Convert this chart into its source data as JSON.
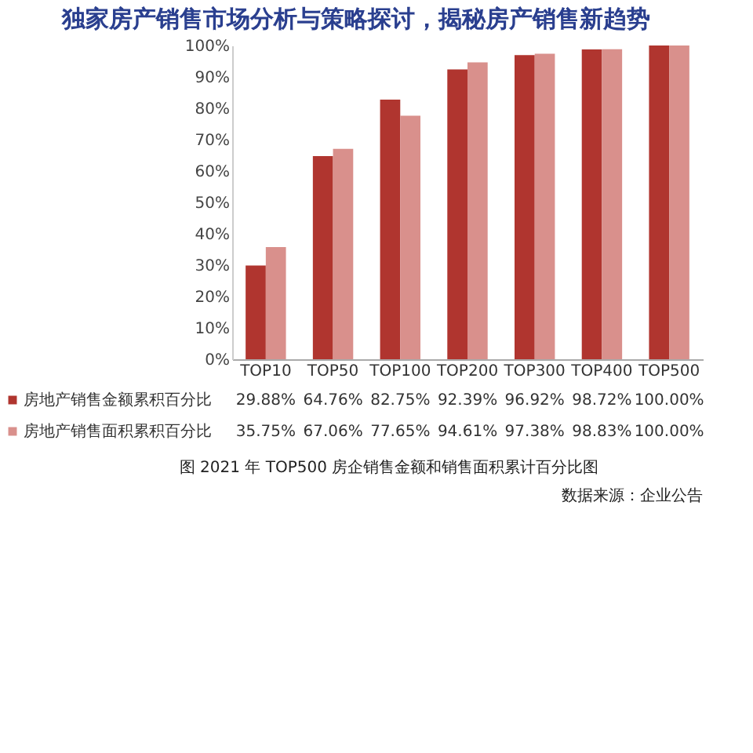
{
  "chart_data": {
    "type": "bar",
    "title": "独家房产销售市场分析与策略探讨，揭秘房产销售新趋势",
    "categories": [
      "TOP10",
      "TOP50",
      "TOP100",
      "TOP200",
      "TOP300",
      "TOP400",
      "TOP500"
    ],
    "series": [
      {
        "name": "房地产销售金额累积百分比",
        "color": "#b0352f",
        "values": [
          29.88,
          64.76,
          82.75,
          92.39,
          96.92,
          98.72,
          100.0
        ],
        "value_labels": [
          "29.88%",
          "64.76%",
          "82.75%",
          "92.39%",
          "96.92%",
          "98.72%",
          "100.00%"
        ]
      },
      {
        "name": "房地产销售面积累积百分比",
        "color": "#d9908c",
        "values": [
          35.75,
          67.06,
          77.65,
          94.61,
          97.38,
          98.83,
          100.0
        ],
        "value_labels": [
          "35.75%",
          "67.06%",
          "77.65%",
          "94.61%",
          "97.38%",
          "98.83%",
          "100.00%"
        ]
      }
    ],
    "ylim": [
      0,
      100
    ],
    "yticks": [
      {
        "value": 0,
        "label": "0%"
      },
      {
        "value": 10,
        "label": "10%"
      },
      {
        "value": 20,
        "label": "20%"
      },
      {
        "value": 30,
        "label": "30%"
      },
      {
        "value": 40,
        "label": "40%"
      },
      {
        "value": 50,
        "label": "50%"
      },
      {
        "value": 60,
        "label": "60%"
      },
      {
        "value": 70,
        "label": "70%"
      },
      {
        "value": 80,
        "label": "80%"
      },
      {
        "value": 90,
        "label": "90%"
      },
      {
        "value": 100,
        "label": "100%"
      }
    ],
    "grid": false,
    "legend": "bottom left",
    "annotations": [
      "图  2021 年 TOP500 房企销售金额和销售面积累计百分比图",
      "数据来源：企业公告"
    ]
  }
}
